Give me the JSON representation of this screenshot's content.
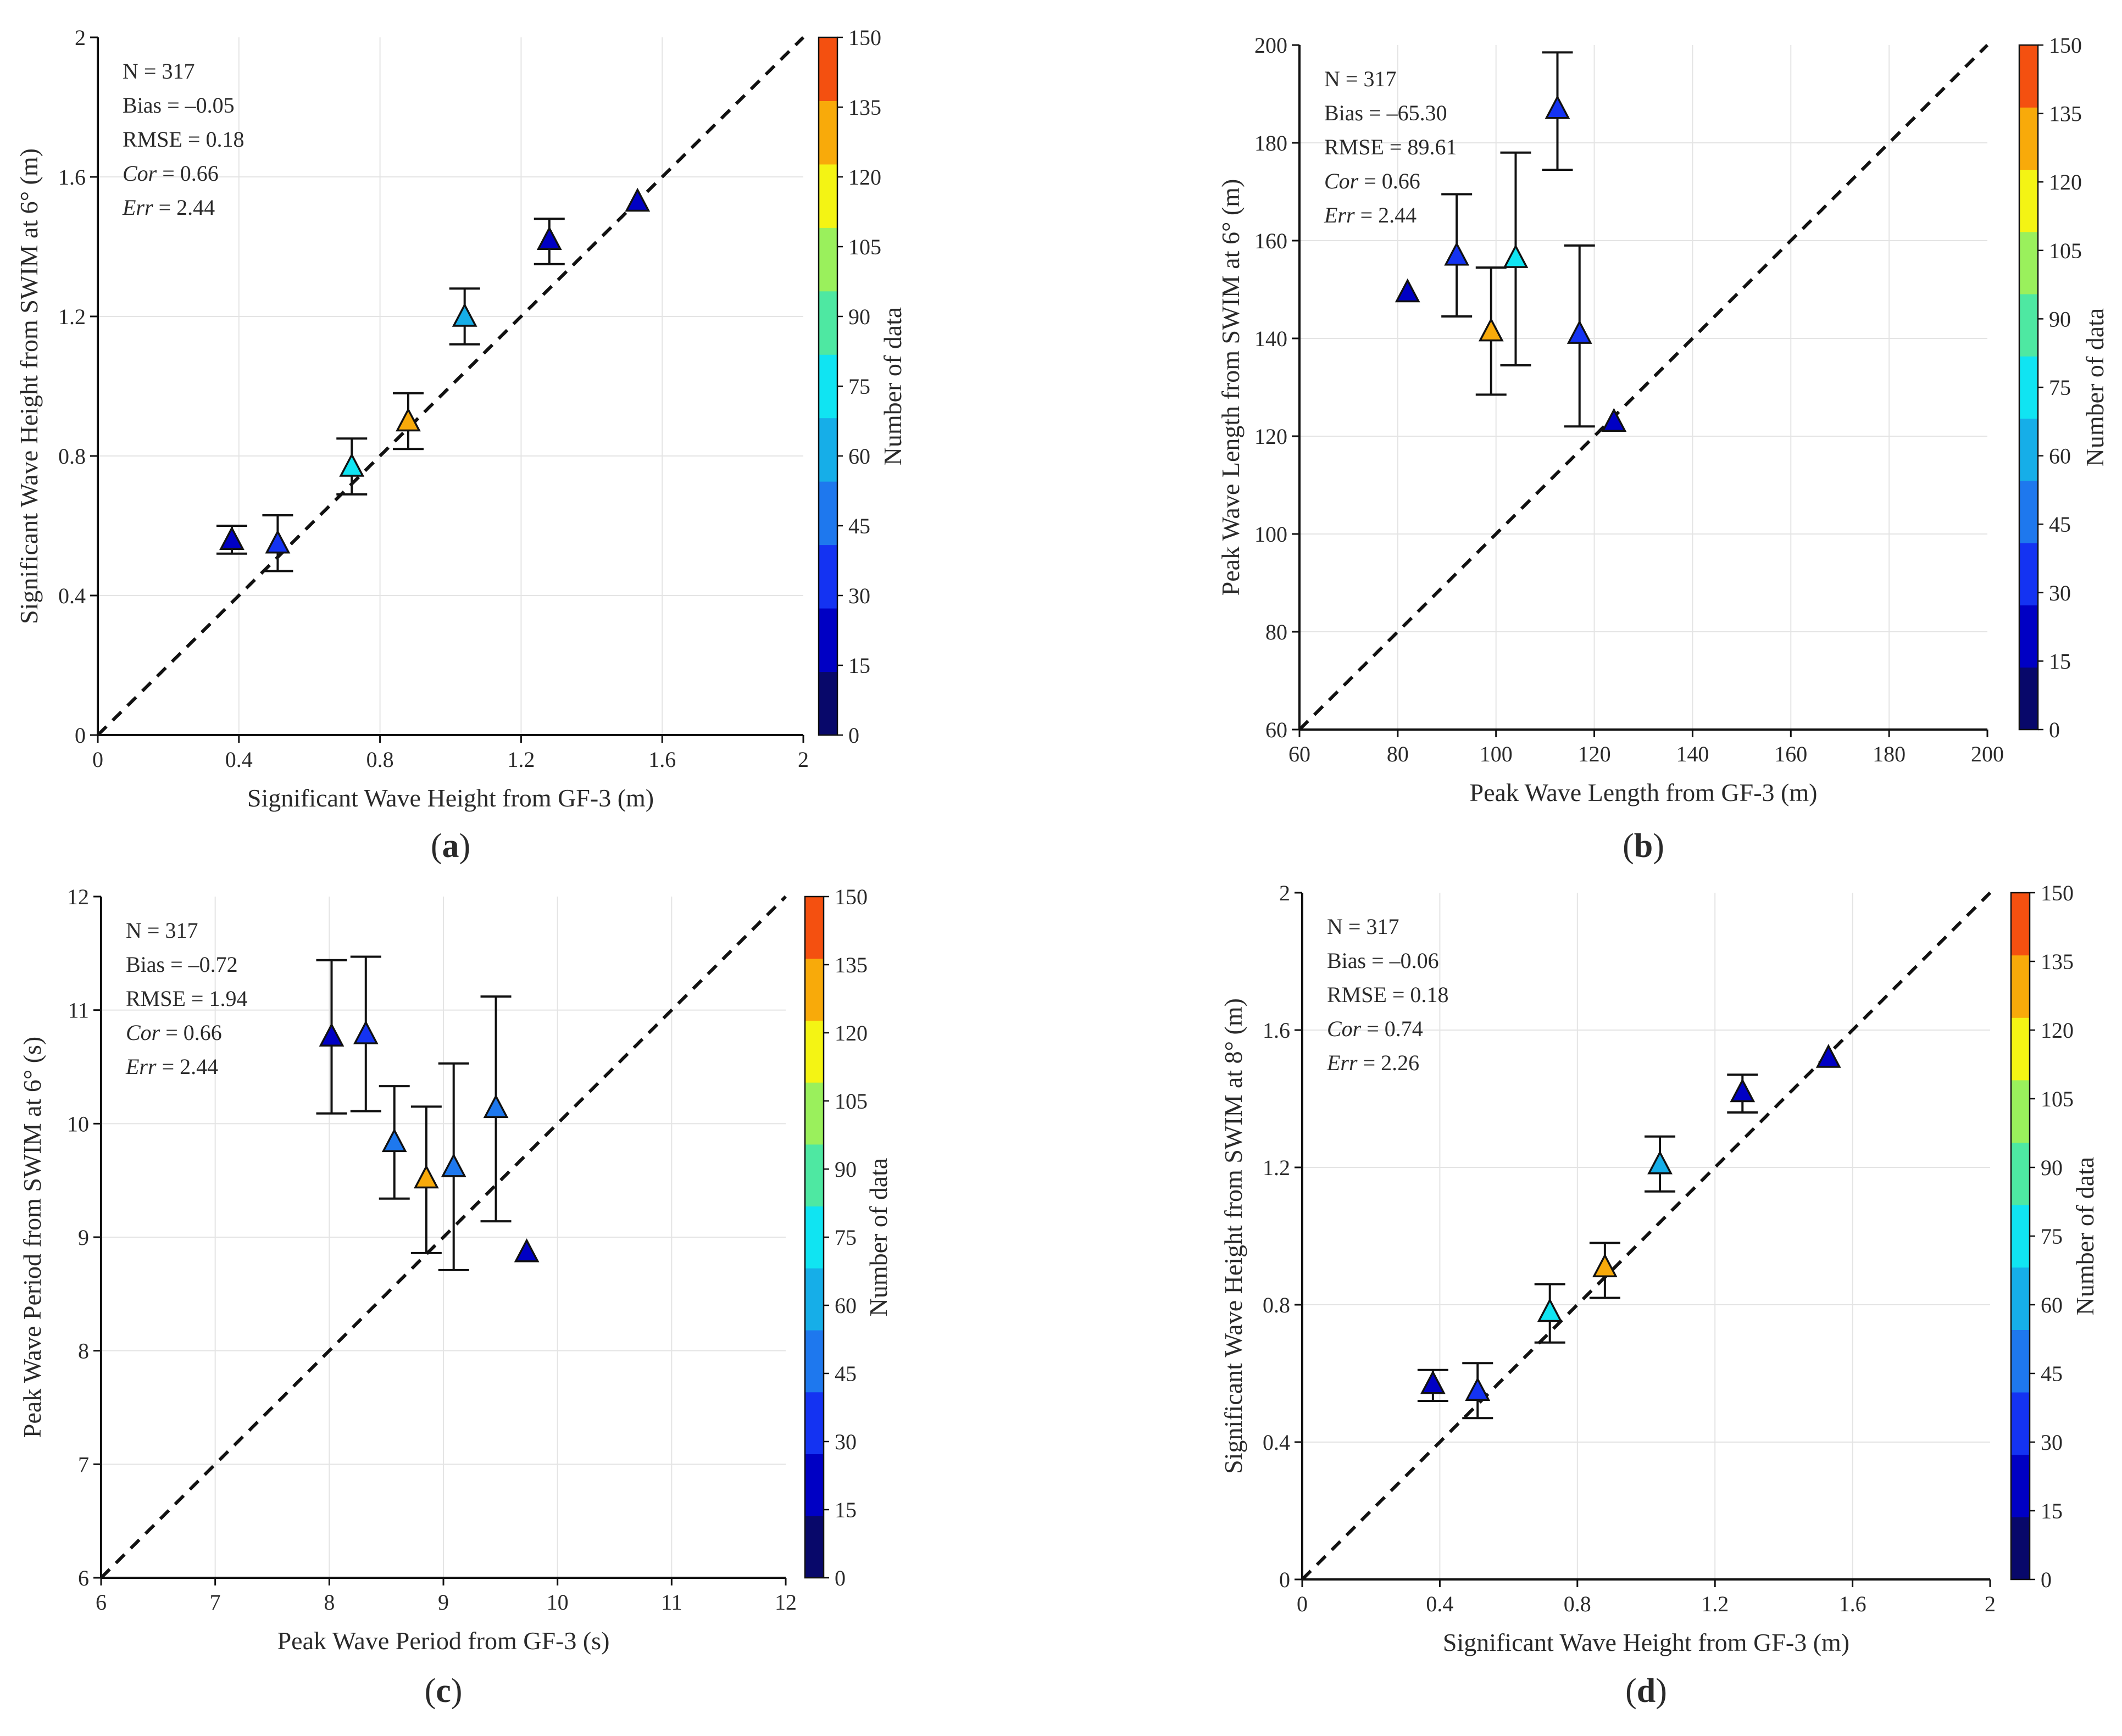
{
  "figure": {
    "colorbar_levels": [
      0,
      15,
      30,
      45,
      60,
      75,
      90,
      105,
      120,
      135,
      150
    ],
    "colorbar_colors": [
      "#08086a",
      "#0000c4",
      "#1433f2",
      "#1e78ee",
      "#16aee8",
      "#10e4f2",
      "#4ee8a2",
      "#9af05c",
      "#f4f414",
      "#f8aa0a",
      "#f45010"
    ],
    "colorbar_label": "Number of data"
  },
  "chart_data": [
    {
      "type": "scatter",
      "panel": "(a)",
      "panel_letter": "a",
      "xlabel": "Significant Wave Height from GF-3 (m)",
      "ylabel": "Significant Wave Height from SWIM at 6° (m)",
      "xlim": [
        0,
        2
      ],
      "ylim": [
        0,
        2
      ],
      "xticks": [
        0,
        0.4,
        0.8,
        1.2,
        1.6,
        2
      ],
      "yticks": [
        0,
        0.4,
        0.8,
        1.2,
        1.6,
        2
      ],
      "xtick_labels": [
        "0",
        "0.4",
        "0.8",
        "1.2",
        "1.6",
        "2"
      ],
      "ytick_labels": [
        "0",
        "0.4",
        "0.8",
        "1.2",
        "1.6",
        "2"
      ],
      "stats": {
        "n": "N = 317",
        "bias": "Bias = –0.05",
        "rmse": "RMSE = 0.18",
        "cor_label": "Cor",
        "cor_value": " = 0.66",
        "err_label": "Err",
        "err_value": " = 2.44"
      },
      "points": [
        {
          "x": 0.38,
          "y": 0.56,
          "err_low": 0.52,
          "err_high": 0.6,
          "count": 25
        },
        {
          "x": 0.51,
          "y": 0.55,
          "err_low": 0.47,
          "err_high": 0.63,
          "count": 40
        },
        {
          "x": 0.72,
          "y": 0.77,
          "err_low": 0.69,
          "err_high": 0.85,
          "count": 80
        },
        {
          "x": 0.88,
          "y": 0.9,
          "err_low": 0.82,
          "err_high": 0.98,
          "count": 145
        },
        {
          "x": 1.04,
          "y": 1.2,
          "err_low": 1.12,
          "err_high": 1.28,
          "count": 65
        },
        {
          "x": 1.28,
          "y": 1.42,
          "err_low": 1.35,
          "err_high": 1.48,
          "count": 28
        },
        {
          "x": 1.53,
          "y": 1.53,
          "count": 25
        }
      ]
    },
    {
      "type": "scatter",
      "panel": "(b)",
      "panel_letter": "b",
      "xlabel": "Peak Wave Length from GF-3 (m)",
      "ylabel": "Peak Wave Length from SWIM at 6° (m)",
      "xlim": [
        60,
        200
      ],
      "ylim": [
        60,
        200
      ],
      "xticks": [
        60,
        80,
        100,
        120,
        140,
        160,
        180,
        200
      ],
      "yticks": [
        60,
        80,
        100,
        120,
        140,
        160,
        180,
        200
      ],
      "xtick_labels": [
        "60",
        "80",
        "100",
        "120",
        "140",
        "160",
        "180",
        "200"
      ],
      "ytick_labels": [
        "60",
        "80",
        "100",
        "120",
        "140",
        "160",
        "180",
        "200"
      ],
      "stats": {
        "n": "N = 317",
        "bias": "Bias = –65.30",
        "rmse": "RMSE = 89.61",
        "cor_label": "Cor",
        "cor_value": " = 0.66",
        "err_label": "Err",
        "err_value": " = 2.44"
      },
      "points": [
        {
          "x": 82,
          "y": 149.5,
          "count": 25
        },
        {
          "x": 92,
          "y": 157,
          "err_low": 144.5,
          "err_high": 169.5,
          "count": 40
        },
        {
          "x": 99,
          "y": 141.5,
          "err_low": 128.5,
          "err_high": 154.5,
          "count": 145
        },
        {
          "x": 104,
          "y": 156.5,
          "err_low": 134.5,
          "err_high": 178,
          "count": 80
        },
        {
          "x": 112.5,
          "y": 187,
          "err_low": 174.5,
          "err_high": 198.5,
          "count": 40
        },
        {
          "x": 117,
          "y": 141,
          "err_low": 122,
          "err_high": 159,
          "count": 40
        },
        {
          "x": 124,
          "y": 123,
          "count": 25
        }
      ]
    },
    {
      "type": "scatter",
      "panel": "(c)",
      "panel_letter": "c",
      "xlabel": "Peak Wave Period from GF-3 (s)",
      "ylabel": "Peak Wave Period from SWIM at 6° (s)",
      "xlim": [
        6,
        12
      ],
      "ylim": [
        6,
        12
      ],
      "xticks": [
        6,
        7,
        8,
        9,
        10,
        11,
        12
      ],
      "yticks": [
        6,
        7,
        8,
        9,
        10,
        11,
        12
      ],
      "xtick_labels": [
        "6",
        "7",
        "8",
        "9",
        "10",
        "11",
        "12"
      ],
      "ytick_labels": [
        "6",
        "7",
        "8",
        "9",
        "10",
        "11",
        "12"
      ],
      "stats": {
        "n": "N = 317",
        "bias": "Bias = –0.72",
        "rmse": "RMSE = 1.94",
        "cor_label": "Cor",
        "cor_value": " = 0.66",
        "err_label": "Err",
        "err_value": " = 2.44"
      },
      "points": [
        {
          "x": 8.02,
          "y": 10.77,
          "err_low": 10.09,
          "err_high": 11.44,
          "count": 25
        },
        {
          "x": 8.32,
          "y": 10.79,
          "err_low": 10.11,
          "err_high": 11.47,
          "count": 35
        },
        {
          "x": 8.57,
          "y": 9.84,
          "err_low": 9.34,
          "err_high": 10.33,
          "count": 50
        },
        {
          "x": 8.85,
          "y": 9.52,
          "err_low": 8.86,
          "err_high": 10.15,
          "count": 145
        },
        {
          "x": 9.09,
          "y": 9.62,
          "err_low": 8.71,
          "err_high": 10.53,
          "count": 55
        },
        {
          "x": 9.46,
          "y": 10.14,
          "err_low": 9.14,
          "err_high": 11.12,
          "count": 50
        },
        {
          "x": 9.73,
          "y": 8.87,
          "count": 25
        }
      ]
    },
    {
      "type": "scatter",
      "panel": "(d)",
      "panel_letter": "d",
      "xlabel": "Significant Wave Height from GF-3 (m)",
      "ylabel": "Significant Wave Height from SWIM at 8° (m)",
      "xlim": [
        0,
        2
      ],
      "ylim": [
        0,
        2
      ],
      "xticks": [
        0,
        0.4,
        0.8,
        1.2,
        1.6,
        2
      ],
      "yticks": [
        0,
        0.4,
        0.8,
        1.2,
        1.6,
        2
      ],
      "xtick_labels": [
        "0",
        "0.4",
        "0.8",
        "1.2",
        "1.6",
        "2"
      ],
      "ytick_labels": [
        "0",
        "0.4",
        "0.8",
        "1.2",
        "1.6",
        "2"
      ],
      "stats": {
        "n": "N = 317",
        "bias": "Bias = –0.06",
        "rmse": "RMSE = 0.18",
        "cor_label": "Cor",
        "cor_value": " = 0.74",
        "err_label": "Err",
        "err_value": " = 2.26"
      },
      "points": [
        {
          "x": 0.38,
          "y": 0.57,
          "err_low": 0.52,
          "err_high": 0.61,
          "count": 25
        },
        {
          "x": 0.51,
          "y": 0.55,
          "err_low": 0.47,
          "err_high": 0.63,
          "count": 40
        },
        {
          "x": 0.72,
          "y": 0.78,
          "err_low": 0.69,
          "err_high": 0.86,
          "count": 80
        },
        {
          "x": 0.88,
          "y": 0.91,
          "err_low": 0.82,
          "err_high": 0.98,
          "count": 145
        },
        {
          "x": 1.04,
          "y": 1.21,
          "err_low": 1.13,
          "err_high": 1.29,
          "count": 65
        },
        {
          "x": 1.28,
          "y": 1.42,
          "err_low": 1.36,
          "err_high": 1.47,
          "count": 28
        },
        {
          "x": 1.53,
          "y": 1.52,
          "count": 25
        }
      ]
    }
  ]
}
